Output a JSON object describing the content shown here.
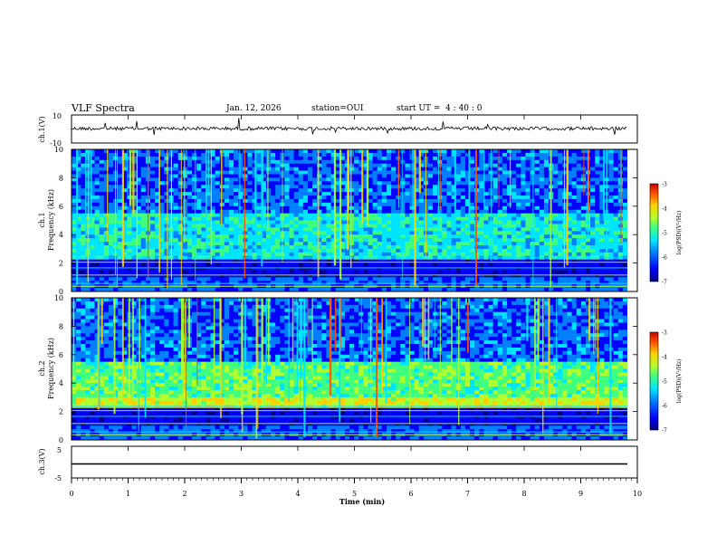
{
  "header": {
    "title": "VLF Spectra",
    "date": "Jan. 12, 2026",
    "station": "station=OUI",
    "start": "start UT =  4 : 40 : 0"
  },
  "colors": {
    "colormap": [
      "#00007f",
      "#0000ff",
      "#0080ff",
      "#00e5ff",
      "#40ff80",
      "#b0ff30",
      "#ffd000",
      "#ff5000",
      "#c80000"
    ]
  },
  "chart_data": [
    {
      "type": "line",
      "ylabel": "ch.1(V)",
      "ylim": [
        -10,
        10
      ],
      "yticks": [
        "10",
        "-10"
      ],
      "xlim": [
        0,
        10
      ],
      "note_level": 0
    },
    {
      "type": "heatmap",
      "ylabel_line1": "ch.1",
      "ylabel_line2": "Frequency (kHz)",
      "ylim": [
        0,
        10
      ],
      "yticks": [
        "0",
        "2",
        "4",
        "6",
        "8",
        "10"
      ],
      "xlim": [
        0,
        10
      ],
      "colorbar": {
        "label": "log(PSD)(V²/Hz)",
        "range": [
          -7,
          -3
        ],
        "ticks": [
          "-3",
          "-4",
          "-5",
          "-6",
          "-7"
        ]
      }
    },
    {
      "type": "heatmap",
      "ylabel_line1": "ch.2",
      "ylabel_line2": "Frequency (kHz)",
      "ylim": [
        0,
        10
      ],
      "yticks": [
        "0",
        "2",
        "4",
        "6",
        "8",
        "10"
      ],
      "xlim": [
        0,
        10
      ],
      "colorbar": {
        "label": "log(PSD)(V²/Hz)",
        "range": [
          -7,
          -3
        ],
        "ticks": [
          "-3",
          "-4",
          "-5",
          "-6",
          "-7"
        ]
      }
    },
    {
      "type": "line",
      "ylabel": "ch.3(V)",
      "ylim": [
        -5,
        5
      ],
      "yticks": [
        "5",
        "-5"
      ],
      "xlim": [
        0,
        10
      ],
      "xlabel": "Time (min)",
      "xticks": [
        "0",
        "1",
        "2",
        "3",
        "4",
        "5",
        "6",
        "7",
        "8",
        "9",
        "10"
      ],
      "constant_value": 0
    }
  ]
}
